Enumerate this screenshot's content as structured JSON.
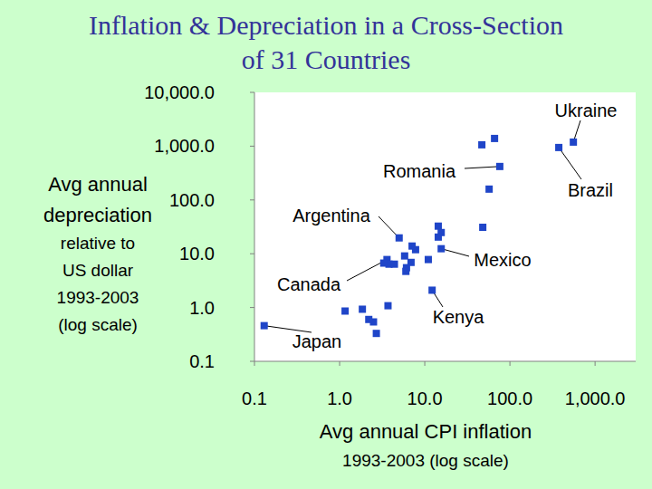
{
  "chart_data": {
    "type": "scatter",
    "title": "Inflation & Depreciation in a Cross-Section\nof 31 Countries",
    "xlabel": "Avg annual CPI inflation",
    "xlabel_sub": "1993-2003 (log scale)",
    "ylabel": "Avg annual\ndepreciation",
    "ylabel_sub": "relative to\nUS dollar\n1993-2003\n(log scale)",
    "x": [
      0.13,
      1.16,
      1.85,
      2.5,
      2.7,
      3.7,
      3.6,
      3.8,
      5.0,
      5.8,
      6.1,
      6.9,
      7.1,
      11,
      12.2,
      14.4,
      15.6,
      15.6,
      46.8,
      66,
      76,
      57,
      48,
      375,
      556,
      4.4,
      7.8,
      6.0,
      3.3,
      14.4,
      2.2
    ],
    "values": [
      0.46,
      0.86,
      0.93,
      0.54,
      0.33,
      1.08,
      7.8,
      6.4,
      19.7,
      9.1,
      5.5,
      6.9,
      13.9,
      7.8,
      2.1,
      32.6,
      24.8,
      12.4,
      1060,
      1390,
      419,
      159,
      31,
      944,
      1190,
      6.4,
      11.9,
      4.7,
      6.7,
      20.4,
      0.6
    ],
    "color": "#1f45c8",
    "marker": "square",
    "log": true,
    "xlim": [
      0.1,
      3000
    ],
    "ylim": [
      0.1,
      10000
    ],
    "xticks": [
      0.1,
      {
        "value": 1,
        "label": "1.0"
      },
      {
        "value": 10,
        "label": "10.0"
      },
      {
        "value": 100,
        "label": "100.0"
      },
      {
        "value": 1000,
        "label": "1,000.0"
      }
    ],
    "yticks": [
      0.1,
      {
        "value": 1,
        "label": "1.0"
      },
      {
        "value": 10,
        "label": "10.0"
      },
      {
        "value": 100,
        "label": "100.0"
      },
      {
        "value": 1000,
        "label": "1,000.0"
      },
      {
        "value": 10000,
        "label": "10,000.0"
      }
    ],
    "annotations": [
      {
        "text": "Ukraine",
        "x": 556,
        "y": 1190
      },
      {
        "text": "Romania",
        "x": 76,
        "y": 419
      },
      {
        "text": "Brazil",
        "x": 375,
        "y": 944
      },
      {
        "text": "Argentina",
        "x": 5.0,
        "y": 19.7
      },
      {
        "text": "Mexico",
        "x": 15.6,
        "y": 12.4
      },
      {
        "text": "Canada",
        "x": 3.6,
        "y": 7.8
      },
      {
        "text": "Kenya",
        "x": 12.2,
        "y": 2.1
      },
      {
        "text": "Japan",
        "x": 0.13,
        "y": 0.46
      }
    ]
  }
}
